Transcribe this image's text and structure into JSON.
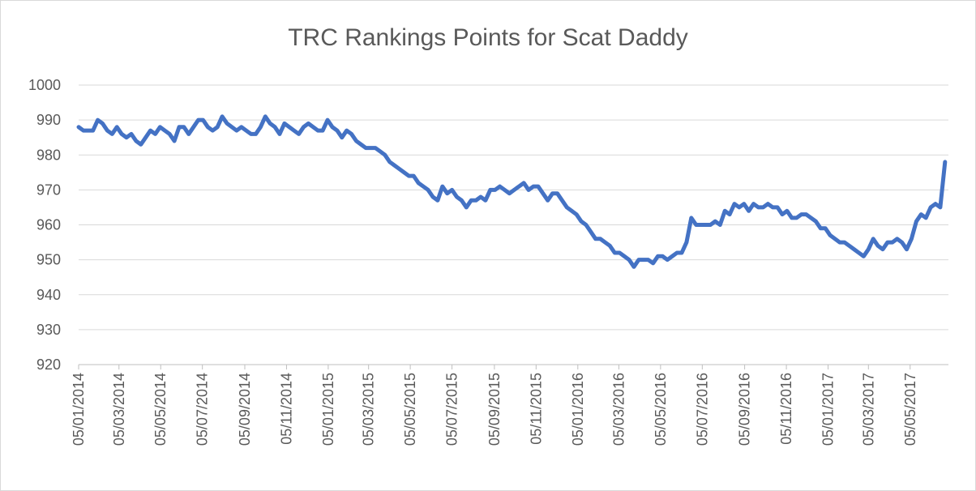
{
  "chart_data": {
    "type": "line",
    "title": "TRC Rankings Points for Scat Daddy",
    "xlabel": "",
    "ylabel": "",
    "ylim": [
      920,
      1000
    ],
    "yticks": [
      920,
      930,
      940,
      950,
      960,
      970,
      980,
      990,
      1000
    ],
    "xlim": [
      "2014-01-05",
      "2017-06-30"
    ],
    "xtick_dates": [
      "2014-01-05",
      "2014-03-05",
      "2014-05-05",
      "2014-07-05",
      "2014-09-05",
      "2014-11-05",
      "2015-01-05",
      "2015-03-05",
      "2015-05-05",
      "2015-07-05",
      "2015-09-05",
      "2015-11-05",
      "2016-01-05",
      "2016-03-05",
      "2016-05-05",
      "2016-07-05",
      "2016-09-05",
      "2016-11-05",
      "2017-01-05",
      "2017-03-05",
      "2017-05-05"
    ],
    "xtick_labels": [
      "05/01/2014",
      "05/03/2014",
      "05/05/2014",
      "05/07/2014",
      "05/09/2014",
      "05/11/2014",
      "05/01/2015",
      "05/03/2015",
      "05/05/2015",
      "05/07/2015",
      "05/09/2015",
      "05/11/2015",
      "05/01/2016",
      "05/03/2016",
      "05/05/2016",
      "05/07/2016",
      "05/09/2016",
      "05/11/2016",
      "05/01/2017",
      "05/03/2017",
      "05/05/2017"
    ],
    "grid": true,
    "legend": "none",
    "series": [
      {
        "color": "#4472c4",
        "points": [
          [
            "2014-01-05",
            988
          ],
          [
            "2014-01-12",
            987
          ],
          [
            "2014-01-26",
            987
          ],
          [
            "2014-02-02",
            990
          ],
          [
            "2014-02-09",
            989
          ],
          [
            "2014-02-16",
            987
          ],
          [
            "2014-02-23",
            986
          ],
          [
            "2014-03-02",
            988
          ],
          [
            "2014-03-09",
            986
          ],
          [
            "2014-03-16",
            985
          ],
          [
            "2014-03-23",
            986
          ],
          [
            "2014-03-30",
            984
          ],
          [
            "2014-04-06",
            983
          ],
          [
            "2014-04-13",
            985
          ],
          [
            "2014-04-20",
            987
          ],
          [
            "2014-04-27",
            986
          ],
          [
            "2014-05-04",
            988
          ],
          [
            "2014-05-11",
            987
          ],
          [
            "2014-05-18",
            986
          ],
          [
            "2014-05-25",
            984
          ],
          [
            "2014-06-01",
            988
          ],
          [
            "2014-06-08",
            988
          ],
          [
            "2014-06-15",
            986
          ],
          [
            "2014-06-22",
            988
          ],
          [
            "2014-06-29",
            990
          ],
          [
            "2014-07-06",
            990
          ],
          [
            "2014-07-13",
            988
          ],
          [
            "2014-07-20",
            987
          ],
          [
            "2014-07-27",
            988
          ],
          [
            "2014-08-03",
            991
          ],
          [
            "2014-08-10",
            989
          ],
          [
            "2014-08-17",
            988
          ],
          [
            "2014-08-24",
            987
          ],
          [
            "2014-08-31",
            988
          ],
          [
            "2014-09-07",
            987
          ],
          [
            "2014-09-14",
            986
          ],
          [
            "2014-09-21",
            986
          ],
          [
            "2014-09-28",
            988
          ],
          [
            "2014-10-05",
            991
          ],
          [
            "2014-10-12",
            989
          ],
          [
            "2014-10-19",
            988
          ],
          [
            "2014-10-26",
            986
          ],
          [
            "2014-11-02",
            989
          ],
          [
            "2014-11-09",
            988
          ],
          [
            "2014-11-16",
            987
          ],
          [
            "2014-11-23",
            986
          ],
          [
            "2014-11-30",
            988
          ],
          [
            "2014-12-07",
            989
          ],
          [
            "2014-12-14",
            988
          ],
          [
            "2014-12-21",
            987
          ],
          [
            "2014-12-28",
            987
          ],
          [
            "2015-01-04",
            990
          ],
          [
            "2015-01-11",
            988
          ],
          [
            "2015-01-18",
            987
          ],
          [
            "2015-01-25",
            985
          ],
          [
            "2015-02-01",
            987
          ],
          [
            "2015-02-08",
            986
          ],
          [
            "2015-02-15",
            984
          ],
          [
            "2015-02-22",
            983
          ],
          [
            "2015-03-01",
            982
          ],
          [
            "2015-03-15",
            982
          ],
          [
            "2015-03-22",
            981
          ],
          [
            "2015-03-29",
            980
          ],
          [
            "2015-04-05",
            978
          ],
          [
            "2015-04-12",
            977
          ],
          [
            "2015-04-19",
            976
          ],
          [
            "2015-04-26",
            975
          ],
          [
            "2015-05-03",
            974
          ],
          [
            "2015-05-10",
            974
          ],
          [
            "2015-05-17",
            972
          ],
          [
            "2015-05-24",
            971
          ],
          [
            "2015-05-31",
            970
          ],
          [
            "2015-06-07",
            968
          ],
          [
            "2015-06-14",
            967
          ],
          [
            "2015-06-21",
            971
          ],
          [
            "2015-06-28",
            969
          ],
          [
            "2015-07-05",
            970
          ],
          [
            "2015-07-12",
            968
          ],
          [
            "2015-07-19",
            967
          ],
          [
            "2015-07-26",
            965
          ],
          [
            "2015-08-02",
            967
          ],
          [
            "2015-08-09",
            967
          ],
          [
            "2015-08-16",
            968
          ],
          [
            "2015-08-23",
            967
          ],
          [
            "2015-08-30",
            970
          ],
          [
            "2015-09-06",
            970
          ],
          [
            "2015-09-13",
            971
          ],
          [
            "2015-09-20",
            970
          ],
          [
            "2015-09-27",
            969
          ],
          [
            "2015-10-04",
            970
          ],
          [
            "2015-10-11",
            971
          ],
          [
            "2015-10-18",
            972
          ],
          [
            "2015-10-25",
            970
          ],
          [
            "2015-11-01",
            971
          ],
          [
            "2015-11-08",
            971
          ],
          [
            "2015-11-15",
            969
          ],
          [
            "2015-11-22",
            967
          ],
          [
            "2015-11-29",
            969
          ],
          [
            "2015-12-06",
            969
          ],
          [
            "2015-12-13",
            967
          ],
          [
            "2015-12-20",
            965
          ],
          [
            "2015-12-27",
            964
          ],
          [
            "2016-01-03",
            963
          ],
          [
            "2016-01-10",
            961
          ],
          [
            "2016-01-17",
            960
          ],
          [
            "2016-01-24",
            958
          ],
          [
            "2016-01-31",
            956
          ],
          [
            "2016-02-07",
            956
          ],
          [
            "2016-02-14",
            955
          ],
          [
            "2016-02-21",
            954
          ],
          [
            "2016-02-28",
            952
          ],
          [
            "2016-03-06",
            952
          ],
          [
            "2016-03-13",
            951
          ],
          [
            "2016-03-20",
            950
          ],
          [
            "2016-03-27",
            948
          ],
          [
            "2016-04-03",
            950
          ],
          [
            "2016-04-10",
            950
          ],
          [
            "2016-04-17",
            950
          ],
          [
            "2016-04-24",
            949
          ],
          [
            "2016-05-01",
            951
          ],
          [
            "2016-05-08",
            951
          ],
          [
            "2016-05-15",
            950
          ],
          [
            "2016-05-22",
            951
          ],
          [
            "2016-05-29",
            952
          ],
          [
            "2016-06-05",
            952
          ],
          [
            "2016-06-12",
            955
          ],
          [
            "2016-06-19",
            962
          ],
          [
            "2016-06-26",
            960
          ],
          [
            "2016-07-03",
            960
          ],
          [
            "2016-07-10",
            960
          ],
          [
            "2016-07-17",
            960
          ],
          [
            "2016-07-24",
            961
          ],
          [
            "2016-07-31",
            960
          ],
          [
            "2016-08-07",
            964
          ],
          [
            "2016-08-14",
            963
          ],
          [
            "2016-08-21",
            966
          ],
          [
            "2016-08-28",
            965
          ],
          [
            "2016-09-04",
            966
          ],
          [
            "2016-09-11",
            964
          ],
          [
            "2016-09-18",
            966
          ],
          [
            "2016-09-25",
            965
          ],
          [
            "2016-10-02",
            965
          ],
          [
            "2016-10-09",
            966
          ],
          [
            "2016-10-16",
            965
          ],
          [
            "2016-10-23",
            965
          ],
          [
            "2016-10-30",
            963
          ],
          [
            "2016-11-06",
            964
          ],
          [
            "2016-11-13",
            962
          ],
          [
            "2016-11-20",
            962
          ],
          [
            "2016-11-27",
            963
          ],
          [
            "2016-12-04",
            963
          ],
          [
            "2016-12-11",
            962
          ],
          [
            "2016-12-18",
            961
          ],
          [
            "2016-12-25",
            959
          ],
          [
            "2017-01-01",
            959
          ],
          [
            "2017-01-08",
            957
          ],
          [
            "2017-01-15",
            956
          ],
          [
            "2017-01-22",
            955
          ],
          [
            "2017-01-29",
            955
          ],
          [
            "2017-02-05",
            954
          ],
          [
            "2017-02-12",
            953
          ],
          [
            "2017-02-19",
            952
          ],
          [
            "2017-02-26",
            951
          ],
          [
            "2017-03-05",
            953
          ],
          [
            "2017-03-12",
            956
          ],
          [
            "2017-03-19",
            954
          ],
          [
            "2017-03-26",
            953
          ],
          [
            "2017-04-02",
            955
          ],
          [
            "2017-04-09",
            955
          ],
          [
            "2017-04-16",
            956
          ],
          [
            "2017-04-23",
            955
          ],
          [
            "2017-04-30",
            953
          ],
          [
            "2017-05-07",
            956
          ],
          [
            "2017-05-14",
            961
          ],
          [
            "2017-05-21",
            963
          ],
          [
            "2017-05-28",
            962
          ],
          [
            "2017-06-04",
            965
          ],
          [
            "2017-06-11",
            966
          ],
          [
            "2017-06-18",
            965
          ],
          [
            "2017-06-25",
            978
          ]
        ]
      }
    ]
  }
}
